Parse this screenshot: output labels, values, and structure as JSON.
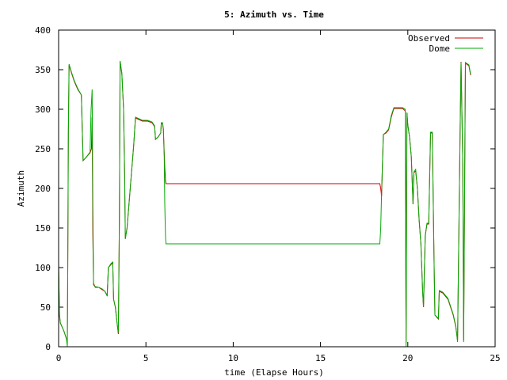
{
  "chart_data": {
    "type": "line",
    "title": "5: Azimuth vs. Time",
    "xlabel": "time (Elapse Hours)",
    "ylabel": "Azimuth",
    "xlim": [
      0,
      25
    ],
    "ylim": [
      0,
      400
    ],
    "xticks": [
      "0",
      "5",
      "10",
      "15",
      "20",
      "25"
    ],
    "yticks": [
      "0",
      "50",
      "100",
      "150",
      "200",
      "250",
      "300",
      "350",
      "400"
    ],
    "legend_position": "top-right",
    "grid": false,
    "series": [
      {
        "name": "Observed",
        "color": "#cc0000",
        "points": [
          [
            0.0,
            100
          ],
          [
            0.05,
            40
          ],
          [
            0.1,
            30
          ],
          [
            0.3,
            20
          ],
          [
            0.45,
            10
          ],
          [
            0.5,
            5
          ],
          [
            0.52,
            90
          ],
          [
            0.56,
            270
          ],
          [
            0.6,
            356
          ],
          [
            0.75,
            345
          ],
          [
            0.9,
            335
          ],
          [
            1.1,
            325
          ],
          [
            1.3,
            318
          ],
          [
            1.4,
            235
          ],
          [
            1.6,
            240
          ],
          [
            1.8,
            245
          ],
          [
            1.88,
            250
          ],
          [
            1.92,
            290
          ],
          [
            1.96,
            140
          ],
          [
            2.0,
            80
          ],
          [
            2.1,
            75
          ],
          [
            2.3,
            75
          ],
          [
            2.5,
            72
          ],
          [
            2.65,
            70
          ],
          [
            2.78,
            65
          ],
          [
            2.85,
            100
          ],
          [
            3.0,
            104
          ],
          [
            3.1,
            106
          ],
          [
            3.15,
            60
          ],
          [
            3.25,
            50
          ],
          [
            3.35,
            30
          ],
          [
            3.42,
            16
          ],
          [
            3.48,
            160
          ],
          [
            3.52,
            360
          ],
          [
            3.62,
            345
          ],
          [
            3.72,
            300
          ],
          [
            3.78,
            220
          ],
          [
            3.82,
            137
          ],
          [
            3.92,
            150
          ],
          [
            4.1,
            200
          ],
          [
            4.3,
            255
          ],
          [
            4.4,
            289
          ],
          [
            4.6,
            287
          ],
          [
            4.8,
            285
          ],
          [
            5.1,
            285
          ],
          [
            5.35,
            283
          ],
          [
            5.5,
            278
          ],
          [
            5.55,
            262
          ],
          [
            5.7,
            265
          ],
          [
            5.85,
            270
          ],
          [
            5.88,
            282
          ],
          [
            5.95,
            282
          ],
          [
            6.0,
            275
          ],
          [
            6.05,
            245
          ],
          [
            6.08,
            226
          ],
          [
            6.12,
            210
          ],
          [
            6.15,
            206
          ],
          [
            10.0,
            206
          ],
          [
            15.0,
            206
          ],
          [
            18.4,
            206
          ],
          [
            18.45,
            200
          ],
          [
            18.5,
            190
          ],
          [
            18.55,
            230
          ],
          [
            18.6,
            268
          ],
          [
            18.75,
            270
          ],
          [
            18.9,
            274
          ],
          [
            19.05,
            290
          ],
          [
            19.2,
            301
          ],
          [
            19.4,
            301
          ],
          [
            19.7,
            301
          ],
          [
            19.85,
            298
          ],
          [
            19.9,
            5
          ],
          [
            19.95,
            295
          ],
          [
            20.0,
            280
          ],
          [
            20.1,
            265
          ],
          [
            20.2,
            240
          ],
          [
            20.3,
            180
          ],
          [
            20.35,
            220
          ],
          [
            20.45,
            222
          ],
          [
            20.55,
            200
          ],
          [
            20.65,
            160
          ],
          [
            20.75,
            130
          ],
          [
            20.85,
            70
          ],
          [
            20.9,
            50
          ],
          [
            21.0,
            140
          ],
          [
            21.1,
            155
          ],
          [
            21.2,
            155
          ],
          [
            21.3,
            270
          ],
          [
            21.4,
            270
          ],
          [
            21.5,
            110
          ],
          [
            21.55,
            40
          ],
          [
            21.75,
            35
          ],
          [
            21.8,
            70
          ],
          [
            22.0,
            68
          ],
          [
            22.3,
            60
          ],
          [
            22.6,
            40
          ],
          [
            22.75,
            25
          ],
          [
            22.85,
            8
          ],
          [
            22.9,
            100
          ],
          [
            23.0,
            280
          ],
          [
            23.05,
            360
          ],
          [
            23.15,
            230
          ],
          [
            23.2,
            8
          ],
          [
            23.3,
            358
          ],
          [
            23.5,
            355
          ],
          [
            23.6,
            343
          ]
        ]
      },
      {
        "name": "Dome",
        "color": "#00aa00",
        "points": [
          [
            0.0,
            105
          ],
          [
            0.05,
            40
          ],
          [
            0.1,
            30
          ],
          [
            0.3,
            20
          ],
          [
            0.45,
            10
          ],
          [
            0.5,
            0
          ],
          [
            0.52,
            90
          ],
          [
            0.56,
            270
          ],
          [
            0.6,
            357
          ],
          [
            0.75,
            346
          ],
          [
            0.9,
            336
          ],
          [
            1.1,
            326
          ],
          [
            1.3,
            318
          ],
          [
            1.4,
            235
          ],
          [
            1.6,
            240
          ],
          [
            1.8,
            246
          ],
          [
            1.86,
            300
          ],
          [
            1.92,
            325
          ],
          [
            1.96,
            180
          ],
          [
            2.0,
            78
          ],
          [
            2.1,
            76
          ],
          [
            2.3,
            75
          ],
          [
            2.5,
            73
          ],
          [
            2.65,
            70
          ],
          [
            2.78,
            64
          ],
          [
            2.85,
            100
          ],
          [
            3.0,
            105
          ],
          [
            3.1,
            107
          ],
          [
            3.15,
            60
          ],
          [
            3.25,
            50
          ],
          [
            3.35,
            30
          ],
          [
            3.42,
            18
          ],
          [
            3.48,
            160
          ],
          [
            3.52,
            361
          ],
          [
            3.62,
            346
          ],
          [
            3.72,
            300
          ],
          [
            3.78,
            220
          ],
          [
            3.82,
            136
          ],
          [
            3.92,
            150
          ],
          [
            4.1,
            200
          ],
          [
            4.3,
            255
          ],
          [
            4.4,
            290
          ],
          [
            4.6,
            288
          ],
          [
            4.8,
            286
          ],
          [
            5.1,
            286
          ],
          [
            5.35,
            284
          ],
          [
            5.5,
            279
          ],
          [
            5.55,
            262
          ],
          [
            5.7,
            265
          ],
          [
            5.85,
            270
          ],
          [
            5.88,
            283
          ],
          [
            5.95,
            283
          ],
          [
            6.0,
            276
          ],
          [
            6.05,
            240
          ],
          [
            6.08,
            180
          ],
          [
            6.12,
            140
          ],
          [
            6.15,
            130
          ],
          [
            10.0,
            130
          ],
          [
            15.0,
            130
          ],
          [
            18.4,
            130
          ],
          [
            18.45,
            150
          ],
          [
            18.5,
            195
          ],
          [
            18.55,
            232
          ],
          [
            18.6,
            268
          ],
          [
            18.75,
            271
          ],
          [
            18.9,
            275
          ],
          [
            19.05,
            292
          ],
          [
            19.2,
            302
          ],
          [
            19.4,
            302
          ],
          [
            19.7,
            302
          ],
          [
            19.85,
            300
          ],
          [
            19.9,
            0
          ],
          [
            19.95,
            296
          ],
          [
            20.0,
            280
          ],
          [
            20.1,
            265
          ],
          [
            20.2,
            240
          ],
          [
            20.3,
            180
          ],
          [
            20.35,
            221
          ],
          [
            20.45,
            224
          ],
          [
            20.55,
            200
          ],
          [
            20.65,
            160
          ],
          [
            20.75,
            130
          ],
          [
            20.85,
            70
          ],
          [
            20.9,
            50
          ],
          [
            21.0,
            141
          ],
          [
            21.1,
            156
          ],
          [
            21.2,
            156
          ],
          [
            21.3,
            271
          ],
          [
            21.4,
            271
          ],
          [
            21.5,
            110
          ],
          [
            21.55,
            40
          ],
          [
            21.75,
            36
          ],
          [
            21.8,
            71
          ],
          [
            22.0,
            69
          ],
          [
            22.3,
            61
          ],
          [
            22.6,
            41
          ],
          [
            22.75,
            26
          ],
          [
            22.85,
            6
          ],
          [
            22.9,
            100
          ],
          [
            23.0,
            280
          ],
          [
            23.05,
            359
          ],
          [
            23.15,
            230
          ],
          [
            23.2,
            6
          ],
          [
            23.3,
            359
          ],
          [
            23.5,
            356
          ],
          [
            23.6,
            344
          ]
        ]
      }
    ]
  }
}
